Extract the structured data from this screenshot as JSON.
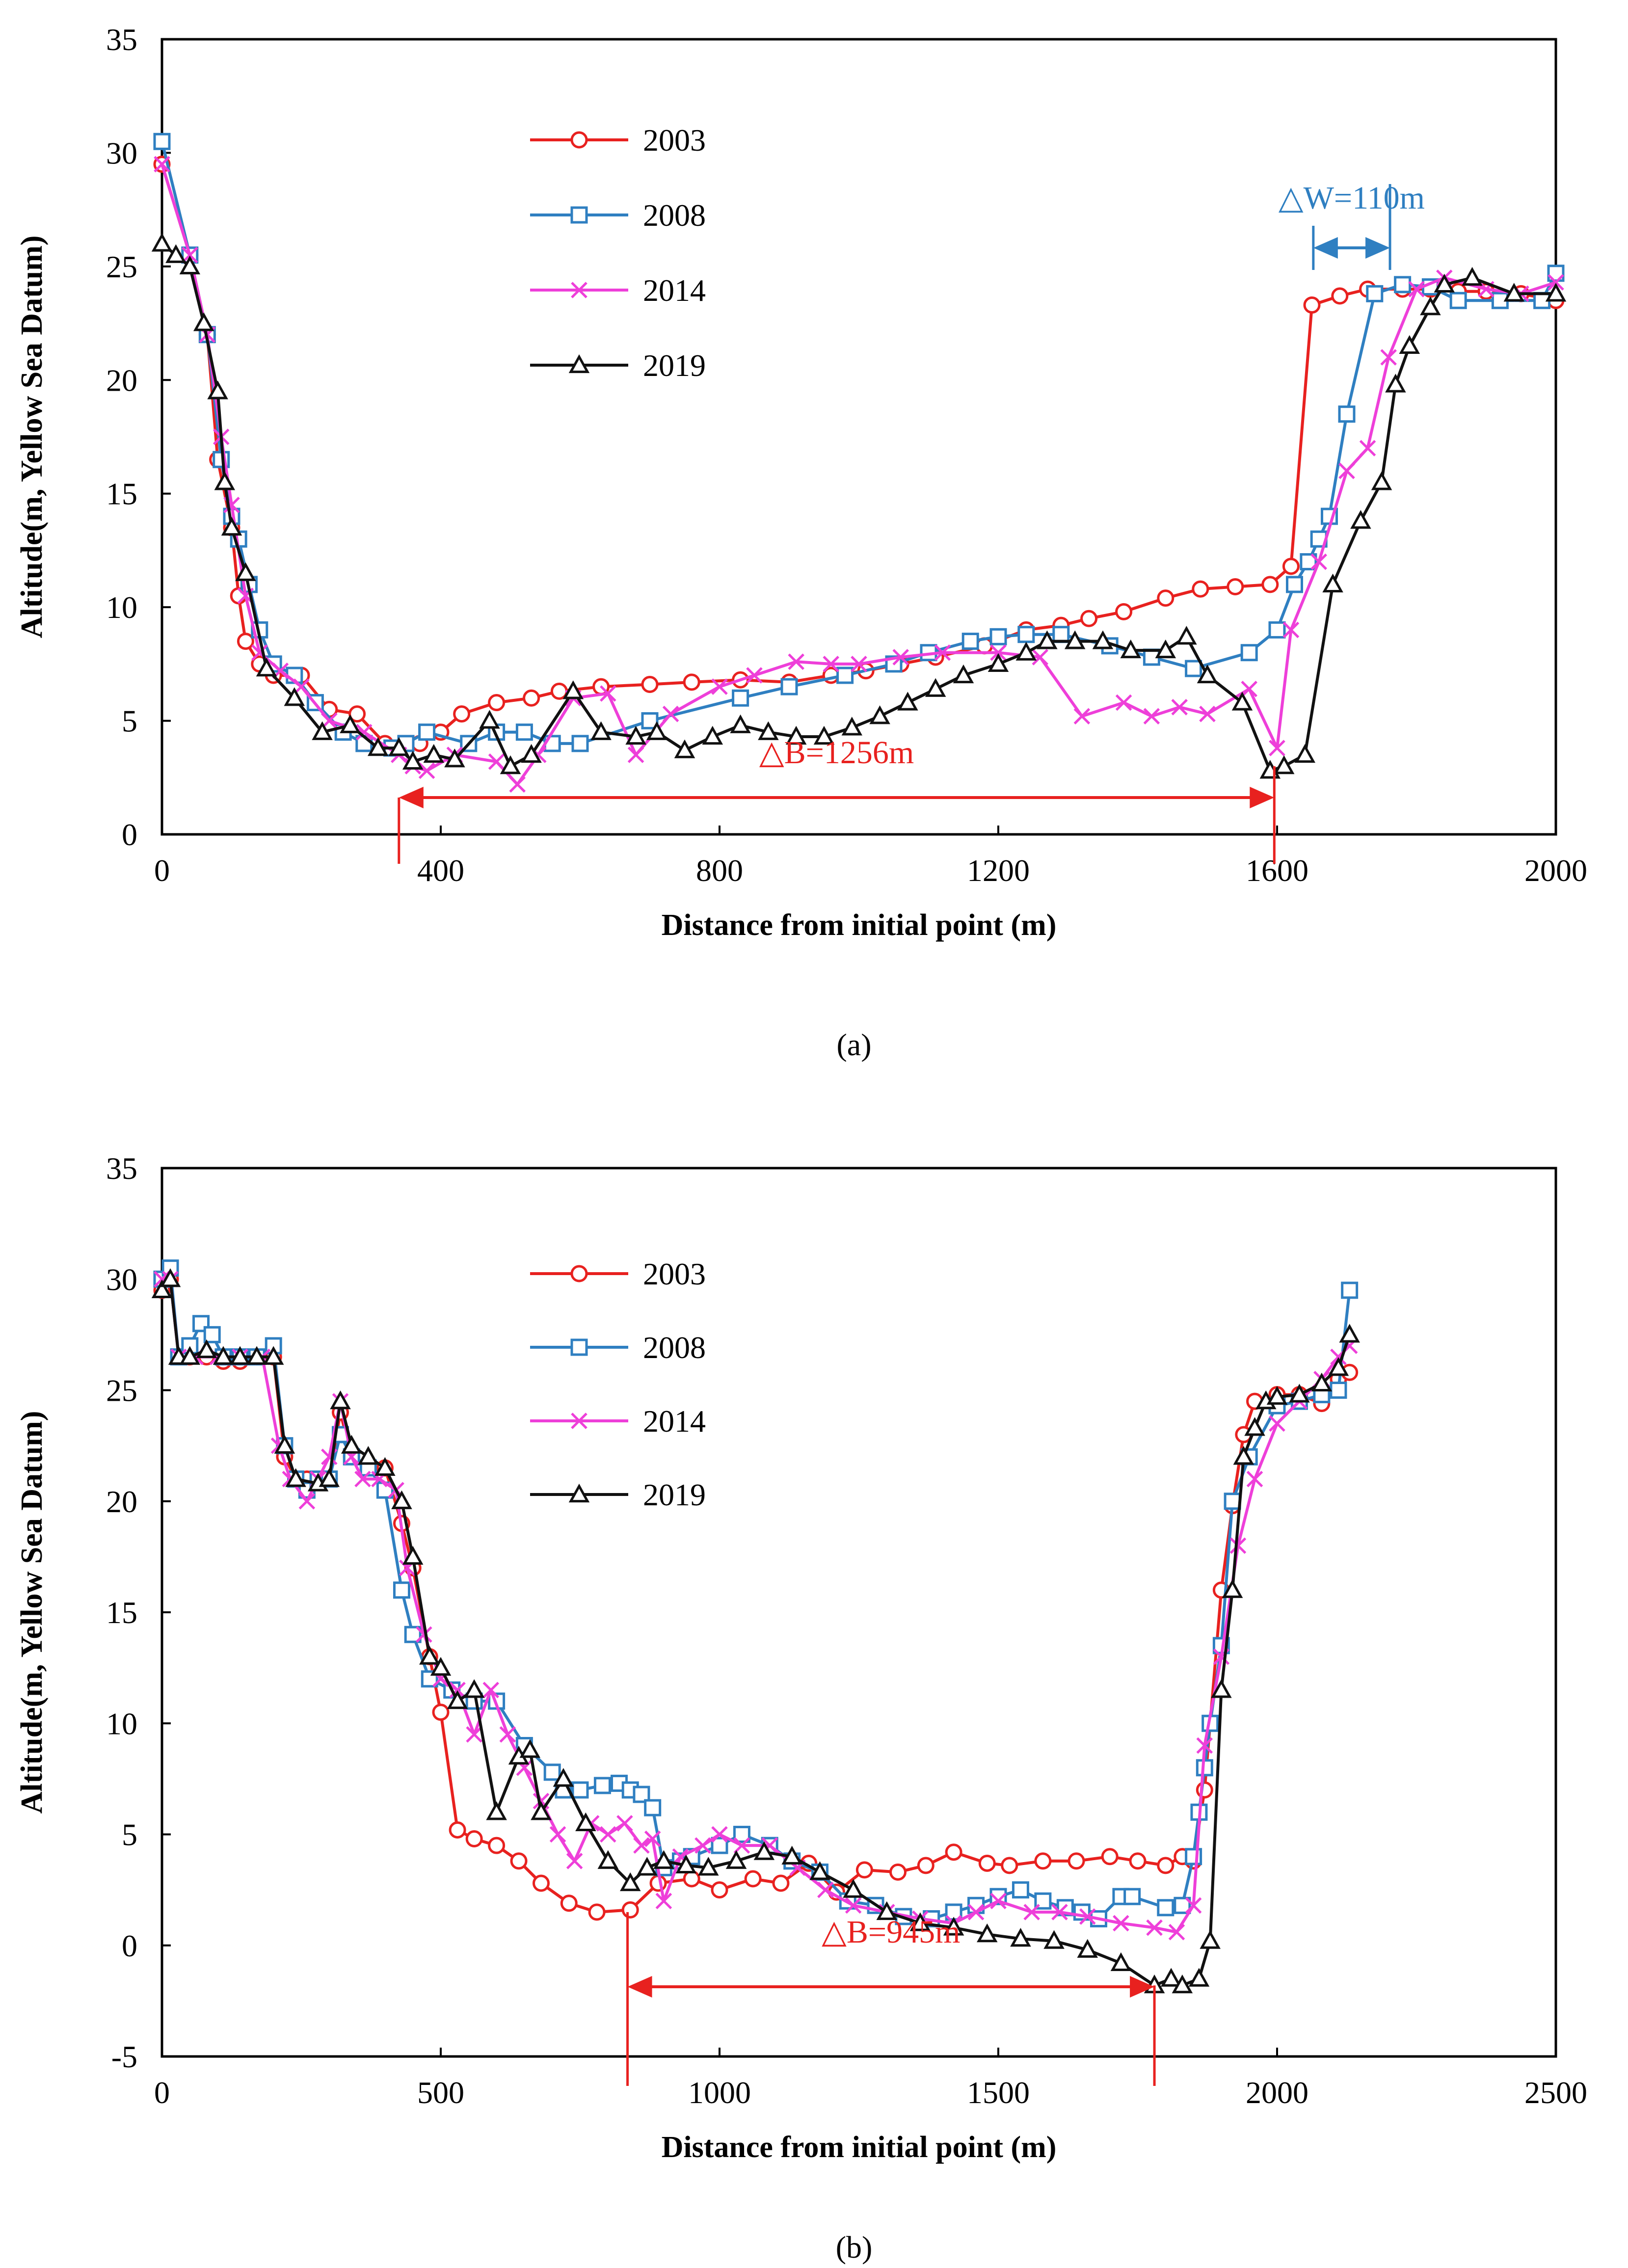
{
  "figure": {
    "panel_labels": [
      "(a)",
      "(b)"
    ]
  },
  "chart_data": [
    {
      "type": "line",
      "panel_label": "(a)",
      "xlabel": "Distance from initial point (m)",
      "ylabel": "Altitude(m, Yellow Sea Datum)",
      "xlim": [
        0,
        2000
      ],
      "ylim": [
        0,
        35
      ],
      "xticks": [
        0,
        400,
        800,
        1200,
        1600,
        2000
      ],
      "yticks": [
        0,
        5,
        10,
        15,
        20,
        25,
        30,
        35
      ],
      "grid": false,
      "legend_position": "upper-left-center",
      "colors": {
        "2003": "#e8211f",
        "2008": "#2f7fc1",
        "2014": "#ee3fd9",
        "2019": "#111111",
        "annotation_red": "#e8211f",
        "annotation_blue": "#2f7fc1"
      },
      "series": [
        {
          "name": "2003",
          "marker": "circle",
          "x": [
            0,
            40,
            65,
            80,
            100,
            110,
            120,
            140,
            160,
            190,
            200,
            240,
            280,
            320,
            340,
            370,
            400,
            430,
            480,
            530,
            570,
            630,
            700,
            760,
            830,
            900,
            960,
            1010,
            1060,
            1110,
            1180,
            1240,
            1290,
            1330,
            1380,
            1440,
            1490,
            1540,
            1590,
            1620,
            1650,
            1690,
            1730,
            1780,
            1820,
            1860,
            1900,
            1950,
            2000
          ],
          "y": [
            29.5,
            25.5,
            22,
            16.5,
            13.5,
            10.5,
            8.5,
            7.5,
            7,
            7,
            7,
            5.5,
            5.3,
            4,
            3.8,
            4,
            4.5,
            5.3,
            5.8,
            6,
            6.3,
            6.5,
            6.6,
            6.7,
            6.8,
            6.7,
            7,
            7.2,
            7.5,
            7.8,
            8.3,
            9,
            9.2,
            9.5,
            9.8,
            10.4,
            10.8,
            10.9,
            11,
            11.8,
            23.3,
            23.7,
            24,
            24,
            24,
            23.9,
            23.9,
            23.8,
            23.5
          ]
        },
        {
          "name": "2008",
          "marker": "square",
          "x": [
            0,
            40,
            65,
            85,
            100,
            110,
            125,
            140,
            160,
            190,
            220,
            260,
            290,
            330,
            350,
            380,
            440,
            480,
            520,
            560,
            600,
            700,
            830,
            900,
            980,
            1050,
            1100,
            1160,
            1200,
            1240,
            1290,
            1360,
            1420,
            1480,
            1560,
            1600,
            1625,
            1645,
            1660,
            1675,
            1700,
            1740,
            1780,
            1820,
            1860,
            1920,
            1980,
            2000
          ],
          "y": [
            30.5,
            25.5,
            22,
            16.5,
            14,
            13,
            11,
            9,
            7.5,
            7,
            5.8,
            4.5,
            4,
            3.8,
            4,
            4.5,
            4,
            4.5,
            4.5,
            4,
            4,
            5,
            6,
            6.5,
            7,
            7.5,
            8,
            8.5,
            8.7,
            8.8,
            8.8,
            8.3,
            7.8,
            7.3,
            8,
            9,
            11,
            12,
            13,
            14,
            18.5,
            23.8,
            24.2,
            24.1,
            23.5,
            23.5,
            23.5,
            24.7
          ]
        },
        {
          "name": "2014",
          "marker": "x",
          "x": [
            0,
            40,
            65,
            85,
            100,
            120,
            140,
            170,
            200,
            240,
            290,
            340,
            360,
            380,
            420,
            480,
            510,
            540,
            590,
            640,
            680,
            730,
            800,
            850,
            910,
            960,
            1000,
            1060,
            1120,
            1200,
            1260,
            1320,
            1380,
            1420,
            1460,
            1500,
            1560,
            1600,
            1620,
            1660,
            1700,
            1730,
            1760,
            1800,
            1840,
            1900,
            1950,
            2000
          ],
          "y": [
            29.5,
            25.5,
            22,
            17.5,
            14.5,
            10.5,
            8,
            7.2,
            6.5,
            5,
            4.5,
            3.5,
            3,
            2.8,
            3.5,
            3.2,
            2.2,
            3.5,
            6,
            6.2,
            3.5,
            5.3,
            6.5,
            7,
            7.6,
            7.5,
            7.5,
            7.8,
            8,
            8,
            7.8,
            5.2,
            5.8,
            5.2,
            5.6,
            5.3,
            6.4,
            3.8,
            9,
            12,
            16,
            17,
            21,
            24,
            24.5,
            24,
            23.8,
            24.3
          ]
        },
        {
          "name": "2019",
          "marker": "triangle",
          "x": [
            0,
            20,
            40,
            60,
            80,
            90,
            100,
            120,
            150,
            190,
            230,
            270,
            310,
            340,
            360,
            390,
            420,
            470,
            500,
            530,
            590,
            630,
            680,
            710,
            750,
            790,
            830,
            870,
            910,
            950,
            990,
            1030,
            1070,
            1110,
            1150,
            1200,
            1240,
            1270,
            1310,
            1350,
            1390,
            1440,
            1470,
            1500,
            1550,
            1590,
            1610,
            1640,
            1680,
            1720,
            1750,
            1770,
            1790,
            1820,
            1840,
            1880,
            1940,
            2000
          ],
          "y": [
            26,
            25.5,
            25,
            22.5,
            19.5,
            15.5,
            13.5,
            11.5,
            7.3,
            6,
            4.5,
            4.8,
            3.8,
            3.8,
            3.2,
            3.5,
            3.3,
            5,
            3,
            3.5,
            6.3,
            4.5,
            4.3,
            4.5,
            3.7,
            4.3,
            4.8,
            4.5,
            4.3,
            4.3,
            4.7,
            5.2,
            5.8,
            6.4,
            7,
            7.5,
            8,
            8.5,
            8.5,
            8.5,
            8.1,
            8.1,
            8.7,
            7,
            5.8,
            2.8,
            3,
            3.5,
            11,
            13.8,
            15.5,
            19.8,
            21.5,
            23.2,
            24.2,
            24.5,
            23.8,
            23.8
          ]
        }
      ],
      "annotations": [
        {
          "text": "△B=1256m",
          "from": 340,
          "to": 1596,
          "color": "annotation_red"
        },
        {
          "text": "△W=110m",
          "from": 1652,
          "to": 1762,
          "color": "annotation_blue"
        }
      ]
    },
    {
      "type": "line",
      "panel_label": "(b)",
      "xlabel": "Distance from initial point (m)",
      "ylabel": "Altitude(m, Yellow Sea Datum)",
      "xlim": [
        0,
        2500
      ],
      "ylim": [
        -5,
        35
      ],
      "xticks": [
        0,
        500,
        1000,
        1500,
        2000,
        2500
      ],
      "yticks": [
        -5,
        0,
        5,
        10,
        15,
        20,
        25,
        30,
        35
      ],
      "grid": false,
      "legend_position": "upper-left-center",
      "colors": {
        "2003": "#e8211f",
        "2008": "#2f7fc1",
        "2014": "#ee3fd9",
        "2019": "#111111",
        "annotation_red": "#e8211f"
      },
      "series": [
        {
          "name": "2003",
          "marker": "circle",
          "x": [
            0,
            15,
            30,
            50,
            80,
            110,
            140,
            170,
            200,
            220,
            240,
            260,
            280,
            300,
            320,
            340,
            370,
            400,
            430,
            450,
            480,
            500,
            530,
            560,
            600,
            640,
            680,
            730,
            780,
            840,
            890,
            950,
            1000,
            1060,
            1110,
            1160,
            1210,
            1260,
            1320,
            1370,
            1420,
            1480,
            1520,
            1580,
            1640,
            1700,
            1750,
            1800,
            1830,
            1850,
            1870,
            1900,
            1920,
            1940,
            1960,
            2000,
            2040,
            2080,
            2110,
            2130
          ],
          "y": [
            29.5,
            30,
            26.5,
            26.5,
            26.5,
            26.3,
            26.3,
            26.5,
            26.5,
            22,
            21,
            21,
            21,
            21,
            24,
            22,
            21.5,
            21.5,
            19,
            17,
            13,
            10.5,
            5.2,
            4.8,
            4.5,
            3.8,
            2.8,
            1.9,
            1.5,
            1.6,
            2.8,
            3,
            2.5,
            3,
            2.8,
            3.7,
            2.4,
            3.4,
            3.3,
            3.6,
            4.2,
            3.7,
            3.6,
            3.8,
            3.8,
            4,
            3.8,
            3.6,
            4,
            3.8,
            7,
            16,
            19.8,
            23,
            24.5,
            24.8,
            24.8,
            24.4,
            25.5,
            25.8
          ]
        },
        {
          "name": "2008",
          "marker": "square",
          "x": [
            0,
            15,
            30,
            50,
            70,
            90,
            110,
            140,
            170,
            200,
            220,
            240,
            260,
            280,
            300,
            320,
            340,
            370,
            400,
            430,
            450,
            480,
            520,
            560,
            600,
            650,
            700,
            720,
            750,
            790,
            820,
            840,
            860,
            880,
            900,
            930,
            950,
            1000,
            1040,
            1090,
            1130,
            1180,
            1230,
            1280,
            1330,
            1380,
            1420,
            1460,
            1500,
            1540,
            1580,
            1620,
            1650,
            1680,
            1720,
            1740,
            1800,
            1830,
            1850,
            1860,
            1870,
            1880,
            1900,
            1920,
            1950,
            2000,
            2040,
            2080,
            2110,
            2130
          ],
          "y": [
            30,
            30.5,
            26.5,
            27,
            28,
            27.5,
            26.5,
            26.5,
            26.5,
            27,
            22.5,
            21,
            20.5,
            21,
            21,
            23,
            22,
            21.5,
            20.5,
            16,
            14,
            12,
            11.5,
            11,
            11,
            9,
            7.8,
            7,
            7,
            7.2,
            7.3,
            7,
            6.8,
            6.2,
            3.5,
            3.8,
            4,
            4.5,
            5,
            4.5,
            3.8,
            3.3,
            2,
            1.8,
            1.3,
            1.2,
            1.5,
            1.8,
            2.2,
            2.5,
            2,
            1.7,
            1.5,
            1.2,
            2.2,
            2.2,
            1.7,
            1.8,
            4,
            6,
            8,
            10,
            13.5,
            20,
            22,
            24.3,
            24.5,
            24.8,
            25,
            29.5
          ]
        },
        {
          "name": "2014",
          "marker": "x",
          "x": [
            0,
            15,
            30,
            60,
            100,
            140,
            180,
            210,
            230,
            260,
            280,
            300,
            320,
            340,
            360,
            390,
            420,
            440,
            470,
            500,
            530,
            560,
            590,
            620,
            650,
            680,
            710,
            740,
            770,
            800,
            830,
            860,
            880,
            900,
            930,
            970,
            1000,
            1040,
            1090,
            1140,
            1190,
            1240,
            1300,
            1360,
            1420,
            1460,
            1500,
            1560,
            1610,
            1660,
            1720,
            1780,
            1820,
            1850,
            1870,
            1900,
            1930,
            1960,
            2000,
            2040,
            2080,
            2110,
            2130
          ],
          "y": [
            30,
            30,
            26.5,
            26.5,
            26.5,
            26.5,
            26.5,
            22.5,
            21,
            20,
            21,
            22,
            24.5,
            22,
            21,
            21,
            20.5,
            17,
            14,
            12,
            11.5,
            9.5,
            11.5,
            9.5,
            8,
            6.5,
            5,
            3.8,
            5.5,
            5,
            5.5,
            4.5,
            4.8,
            2,
            4,
            4.5,
            5,
            4.5,
            4.5,
            3.5,
            2.5,
            1.8,
            1.5,
            1.2,
            1,
            1.5,
            2,
            1.5,
            1.5,
            1.3,
            1,
            0.8,
            0.6,
            1.8,
            9,
            13,
            18,
            21,
            23.5,
            24.5,
            25.5,
            26.5,
            27
          ]
        },
        {
          "name": "2019",
          "marker": "triangle",
          "x": [
            0,
            15,
            30,
            50,
            80,
            110,
            140,
            170,
            200,
            220,
            240,
            280,
            300,
            320,
            340,
            370,
            400,
            430,
            450,
            480,
            500,
            530,
            560,
            600,
            640,
            660,
            680,
            720,
            760,
            800,
            840,
            870,
            900,
            940,
            980,
            1030,
            1080,
            1130,
            1180,
            1240,
            1300,
            1360,
            1420,
            1480,
            1540,
            1600,
            1660,
            1720,
            1780,
            1810,
            1830,
            1860,
            1880,
            1900,
            1920,
            1940,
            1960,
            1980,
            2000,
            2040,
            2080,
            2110,
            2130
          ],
          "y": [
            29.5,
            30,
            26.5,
            26.5,
            26.8,
            26.5,
            26.5,
            26.5,
            26.5,
            22.5,
            21,
            20.8,
            21,
            24.5,
            22.5,
            22,
            21.5,
            20,
            17.5,
            13,
            12.5,
            11,
            11.5,
            6,
            8.5,
            8.8,
            6,
            7.5,
            5.5,
            3.8,
            2.8,
            3.5,
            3.8,
            3.6,
            3.5,
            3.8,
            4.2,
            4,
            3.3,
            2.5,
            1.5,
            1,
            0.8,
            0.5,
            0.3,
            0.2,
            -0.2,
            -0.8,
            -1.8,
            -1.5,
            -1.8,
            -1.5,
            0.2,
            11.5,
            16,
            22,
            23.3,
            24.5,
            24.7,
            24.8,
            25.3,
            26,
            27.5
          ]
        }
      ],
      "annotations": [
        {
          "text": "△B=945m",
          "from": 835,
          "to": 1780,
          "color": "annotation_red"
        }
      ]
    }
  ]
}
